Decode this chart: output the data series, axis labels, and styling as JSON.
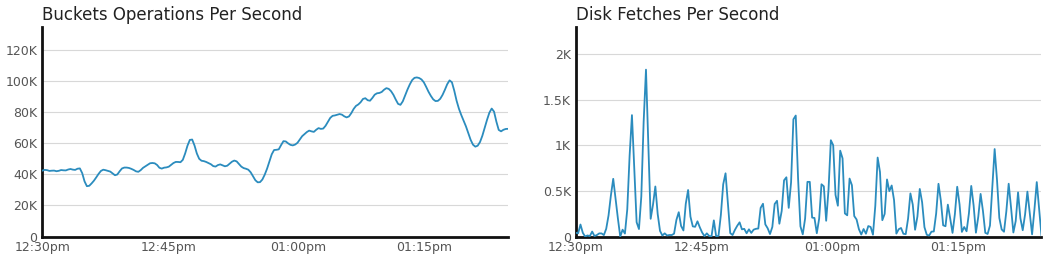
{
  "chart1": {
    "title": "Buckets Operations Per Second",
    "title_color": "#222222",
    "line_color": "#2b8cbe",
    "xtick_labels": [
      "12:30pm",
      "12:45pm",
      "01:00pm",
      "01:15pm"
    ],
    "ytick_labels": [
      "0",
      "20K",
      "40K",
      "60K",
      "80K",
      "100K",
      "120K"
    ],
    "ytick_values": [
      0,
      20000,
      40000,
      60000,
      80000,
      100000,
      120000
    ],
    "ylim": [
      0,
      135000
    ],
    "xlim": [
      0,
      100
    ]
  },
  "chart2": {
    "title": "Disk Fetches Per Second",
    "title_color": "#222222",
    "line_color": "#2b8cbe",
    "xtick_labels": [
      "12:30pm",
      "12:45pm",
      "01:00pm",
      "01:15pm"
    ],
    "ytick_labels": [
      "0",
      "0.5K",
      "1K",
      "1.5K",
      "2K"
    ],
    "ytick_values": [
      0,
      500,
      1000,
      1500,
      2000
    ],
    "ylim": [
      0,
      2300
    ],
    "xlim": [
      0,
      100
    ]
  },
  "background_color": "#ffffff",
  "grid_color": "#d8d8d8",
  "spine_color": "#111111",
  "title_fontsize": 12,
  "tick_fontsize": 9,
  "tick_color": "#555555"
}
